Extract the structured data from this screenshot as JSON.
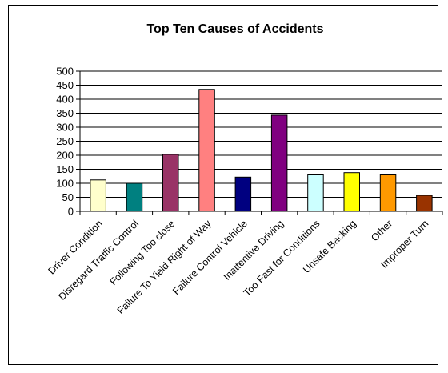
{
  "chart_data": {
    "type": "bar",
    "title": "Top Ten Causes of Accidents",
    "categories": [
      "Driver Condition",
      "Disregard Traffic Control",
      "Following Too close",
      "Failure To Yield Right of Way",
      "Failure Control Vehicle",
      "Inattentive Driving",
      "Too Fast for Conditions",
      "Unsafe Backing",
      "Other",
      "Improper Turn"
    ],
    "values": [
      112,
      100,
      203,
      435,
      122,
      343,
      130,
      138,
      130,
      57
    ],
    "colors": [
      "#FFFFCC",
      "#008080",
      "#993366",
      "#FF8080",
      "#000080",
      "#800080",
      "#CCFFFF",
      "#FFFF00",
      "#FF9900",
      "#993300"
    ],
    "yticks": [
      "0",
      "50",
      "100",
      "150",
      "200",
      "250",
      "300",
      "350",
      "400",
      "450",
      "500"
    ],
    "ylim": [
      0,
      500
    ],
    "grid": true,
    "legend": "none"
  }
}
